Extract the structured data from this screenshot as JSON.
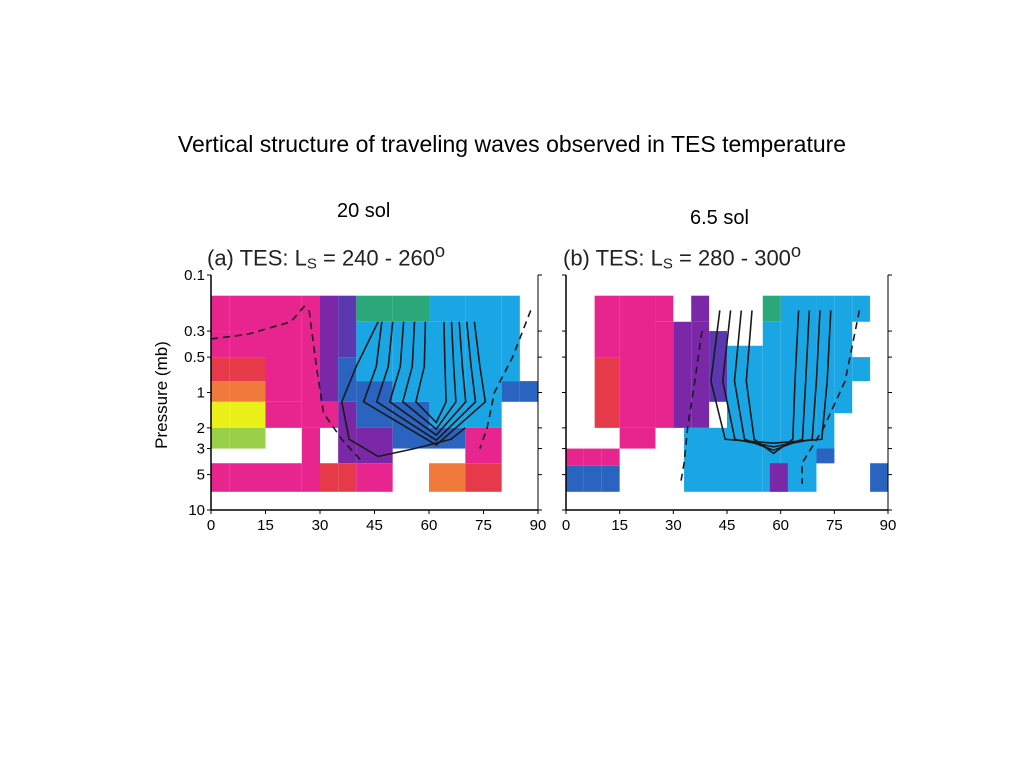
{
  "slide": {
    "title": "Vertical structure of traveling waves observed in TES temperature",
    "period_a": "20 sol",
    "period_b": "6.5 sol"
  },
  "axes": {
    "ylabel": "Pressure (mb)",
    "pressure_ticks": [
      "0.1",
      "0.3",
      "0.5",
      "1",
      "2",
      "3",
      "5",
      "10"
    ],
    "latitude_ticks": [
      "0",
      "15",
      "30",
      "45",
      "60",
      "75",
      "90"
    ]
  },
  "colors": {
    "magenta": "#e8258f",
    "red": "#e63a4a",
    "orange": "#ef7a3c",
    "yellow": "#e9f01a",
    "green_yellow": "#9ad048",
    "green": "#2aa87a",
    "purple": "#7a28a8",
    "violet": "#5b38b0",
    "blue": "#2a63c0",
    "cyan": "#1aa6e4"
  },
  "chart_data": [
    {
      "type": "heatmap",
      "panel": "a",
      "label": "(a)",
      "instrument": "TES",
      "ls_range": "240 - 260",
      "title_text": "(a)  TES: L",
      "title_sub": "S",
      "title_tail": " = 240 - 260",
      "title_sup": "o",
      "xlim": [
        0,
        90
      ],
      "ylim_pressure_mb": [
        10,
        0.1
      ],
      "yscale": "log",
      "bins": [
        {
          "lat": [
            0,
            5
          ],
          "p": [
            0.15,
            0.3
          ],
          "color": "magenta"
        },
        {
          "lat": [
            0,
            5
          ],
          "p": [
            0.3,
            0.5
          ],
          "color": "magenta"
        },
        {
          "lat": [
            0,
            5
          ],
          "p": [
            0.5,
            0.8
          ],
          "color": "red"
        },
        {
          "lat": [
            0,
            5
          ],
          "p": [
            0.8,
            1.2
          ],
          "color": "orange"
        },
        {
          "lat": [
            0,
            5
          ],
          "p": [
            1.2,
            2.0
          ],
          "color": "yellow"
        },
        {
          "lat": [
            0,
            5
          ],
          "p": [
            2.0,
            3.0
          ],
          "color": "green_yellow"
        },
        {
          "lat": [
            0,
            5
          ],
          "p": [
            4.0,
            7.0
          ],
          "color": "magenta"
        },
        {
          "lat": [
            5,
            15
          ],
          "p": [
            0.15,
            0.3
          ],
          "color": "magenta"
        },
        {
          "lat": [
            5,
            15
          ],
          "p": [
            0.3,
            0.5
          ],
          "color": "magenta"
        },
        {
          "lat": [
            5,
            15
          ],
          "p": [
            0.5,
            0.8
          ],
          "color": "red"
        },
        {
          "lat": [
            5,
            15
          ],
          "p": [
            0.8,
            1.2
          ],
          "color": "orange"
        },
        {
          "lat": [
            5,
            15
          ],
          "p": [
            1.2,
            2.0
          ],
          "color": "yellow"
        },
        {
          "lat": [
            5,
            15
          ],
          "p": [
            2.0,
            3.0
          ],
          "color": "green_yellow"
        },
        {
          "lat": [
            5,
            15
          ],
          "p": [
            4.0,
            7.0
          ],
          "color": "magenta"
        },
        {
          "lat": [
            15,
            25
          ],
          "p": [
            0.15,
            1.2
          ],
          "color": "magenta"
        },
        {
          "lat": [
            15,
            25
          ],
          "p": [
            1.2,
            2.0
          ],
          "color": "magenta"
        },
        {
          "lat": [
            15,
            25
          ],
          "p": [
            4.0,
            7.0
          ],
          "color": "magenta"
        },
        {
          "lat": [
            25,
            30
          ],
          "p": [
            0.15,
            2.0
          ],
          "color": "magenta"
        },
        {
          "lat": [
            25,
            30
          ],
          "p": [
            2.0,
            7.0
          ],
          "color": "magenta"
        },
        {
          "lat": [
            30,
            35
          ],
          "p": [
            0.15,
            1.2
          ],
          "color": "purple"
        },
        {
          "lat": [
            30,
            35
          ],
          "p": [
            1.2,
            2.0
          ],
          "color": "magenta"
        },
        {
          "lat": [
            30,
            35
          ],
          "p": [
            4.0,
            7.0
          ],
          "color": "red"
        },
        {
          "lat": [
            35,
            40
          ],
          "p": [
            0.15,
            0.5
          ],
          "color": "violet"
        },
        {
          "lat": [
            35,
            40
          ],
          "p": [
            0.5,
            1.2
          ],
          "color": "blue"
        },
        {
          "lat": [
            35,
            40
          ],
          "p": [
            1.2,
            4.0
          ],
          "color": "purple"
        },
        {
          "lat": [
            35,
            40
          ],
          "p": [
            4.0,
            7.0
          ],
          "color": "red"
        },
        {
          "lat": [
            40,
            50
          ],
          "p": [
            0.15,
            0.25
          ],
          "color": "green"
        },
        {
          "lat": [
            40,
            50
          ],
          "p": [
            0.25,
            0.8
          ],
          "color": "cyan"
        },
        {
          "lat": [
            40,
            50
          ],
          "p": [
            0.8,
            2.0
          ],
          "color": "blue"
        },
        {
          "lat": [
            40,
            50
          ],
          "p": [
            2.0,
            4.0
          ],
          "color": "purple"
        },
        {
          "lat": [
            40,
            50
          ],
          "p": [
            4.0,
            7.0
          ],
          "color": "magenta"
        },
        {
          "lat": [
            50,
            60
          ],
          "p": [
            0.15,
            0.25
          ],
          "color": "green"
        },
        {
          "lat": [
            50,
            60
          ],
          "p": [
            0.25,
            1.2
          ],
          "color": "cyan"
        },
        {
          "lat": [
            50,
            60
          ],
          "p": [
            1.2,
            3.0
          ],
          "color": "blue"
        },
        {
          "lat": [
            60,
            70
          ],
          "p": [
            0.15,
            0.25
          ],
          "color": "cyan"
        },
        {
          "lat": [
            60,
            70
          ],
          "p": [
            0.25,
            2.0
          ],
          "color": "cyan"
        },
        {
          "lat": [
            60,
            70
          ],
          "p": [
            2.0,
            3.0
          ],
          "color": "blue"
        },
        {
          "lat": [
            60,
            70
          ],
          "p": [
            4.0,
            7.0
          ],
          "color": "orange"
        },
        {
          "lat": [
            70,
            80
          ],
          "p": [
            0.15,
            2.0
          ],
          "color": "cyan"
        },
        {
          "lat": [
            70,
            80
          ],
          "p": [
            2.0,
            4.0
          ],
          "color": "magenta"
        },
        {
          "lat": [
            70,
            80
          ],
          "p": [
            4.0,
            7.0
          ],
          "color": "red"
        },
        {
          "lat": [
            80,
            85
          ],
          "p": [
            0.15,
            0.8
          ],
          "color": "cyan"
        },
        {
          "lat": [
            80,
            85
          ],
          "p": [
            0.8,
            1.2
          ],
          "color": "blue"
        },
        {
          "lat": [
            85,
            90
          ],
          "p": [
            0.8,
            1.2
          ],
          "color": "blue"
        }
      ]
    },
    {
      "type": "heatmap",
      "panel": "b",
      "label": "(b)",
      "instrument": "TES",
      "ls_range": "280 - 300",
      "title_text": "(b)  TES: L",
      "title_sub": "S",
      "title_tail": " = 280 - 300",
      "title_sup": "o",
      "xlim": [
        0,
        90
      ],
      "ylim_pressure_mb": [
        10,
        0.1
      ],
      "yscale": "log",
      "bins": [
        {
          "lat": [
            0,
            5
          ],
          "p": [
            3.0,
            4.2
          ],
          "color": "magenta"
        },
        {
          "lat": [
            0,
            5
          ],
          "p": [
            4.2,
            7.0
          ],
          "color": "blue"
        },
        {
          "lat": [
            5,
            10
          ],
          "p": [
            3.0,
            4.2
          ],
          "color": "magenta"
        },
        {
          "lat": [
            5,
            10
          ],
          "p": [
            4.2,
            7.0
          ],
          "color": "blue"
        },
        {
          "lat": [
            10,
            15
          ],
          "p": [
            3.0,
            4.2
          ],
          "color": "magenta"
        },
        {
          "lat": [
            10,
            15
          ],
          "p": [
            4.2,
            7.0
          ],
          "color": "blue"
        },
        {
          "lat": [
            8,
            15
          ],
          "p": [
            0.15,
            0.5
          ],
          "color": "magenta"
        },
        {
          "lat": [
            8,
            15
          ],
          "p": [
            0.5,
            2.0
          ],
          "color": "red"
        },
        {
          "lat": [
            15,
            25
          ],
          "p": [
            0.15,
            2.0
          ],
          "color": "magenta"
        },
        {
          "lat": [
            15,
            25
          ],
          "p": [
            2.0,
            3.0
          ],
          "color": "magenta"
        },
        {
          "lat": [
            25,
            30
          ],
          "p": [
            0.15,
            0.25
          ],
          "color": "magenta"
        },
        {
          "lat": [
            25,
            30
          ],
          "p": [
            0.25,
            2.0
          ],
          "color": "magenta"
        },
        {
          "lat": [
            30,
            35
          ],
          "p": [
            0.25,
            2.0
          ],
          "color": "purple"
        },
        {
          "lat": [
            35,
            40
          ],
          "p": [
            0.15,
            0.25
          ],
          "color": "purple"
        },
        {
          "lat": [
            35,
            40
          ],
          "p": [
            0.25,
            2.0
          ],
          "color": "purple"
        },
        {
          "lat": [
            40,
            45
          ],
          "p": [
            0.3,
            1.2
          ],
          "color": "violet"
        },
        {
          "lat": [
            33,
            45
          ],
          "p": [
            2.0,
            7.0
          ],
          "color": "cyan"
        },
        {
          "lat": [
            45,
            55
          ],
          "p": [
            0.4,
            7.0
          ],
          "color": "cyan"
        },
        {
          "lat": [
            55,
            60
          ],
          "p": [
            0.15,
            0.25
          ],
          "color": "green"
        },
        {
          "lat": [
            55,
            60
          ],
          "p": [
            0.25,
            7.0
          ],
          "color": "cyan"
        },
        {
          "lat": [
            60,
            70
          ],
          "p": [
            0.15,
            7.0
          ],
          "color": "cyan"
        },
        {
          "lat": [
            57,
            62
          ],
          "p": [
            4.0,
            7.0
          ],
          "color": "purple"
        },
        {
          "lat": [
            70,
            75
          ],
          "p": [
            0.15,
            4.0
          ],
          "color": "cyan"
        },
        {
          "lat": [
            70,
            75
          ],
          "p": [
            3.0,
            4.0
          ],
          "color": "blue"
        },
        {
          "lat": [
            75,
            80
          ],
          "p": [
            0.15,
            1.5
          ],
          "color": "cyan"
        },
        {
          "lat": [
            80,
            85
          ],
          "p": [
            0.15,
            0.25
          ],
          "color": "cyan"
        },
        {
          "lat": [
            80,
            85
          ],
          "p": [
            0.5,
            0.8
          ],
          "color": "cyan"
        },
        {
          "lat": [
            85,
            90
          ],
          "p": [
            4.0,
            7.0
          ],
          "color": "blue"
        }
      ]
    }
  ]
}
